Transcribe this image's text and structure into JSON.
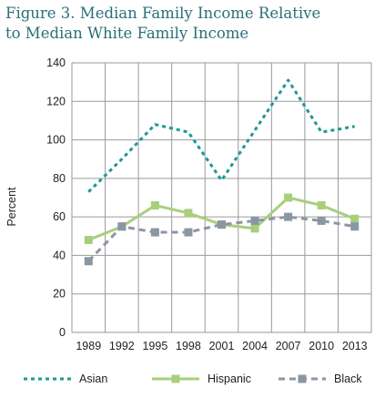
{
  "figure": {
    "title_line1": "Figure 3. Median Family Income Relative",
    "title_line2": "to Median White Family Income"
  },
  "chart_data": {
    "type": "line",
    "title": "Figure 3. Median Family Income Relative to Median White Family Income",
    "xlabel": "",
    "ylabel": "Percent",
    "categories": [
      "1989",
      "1992",
      "1995",
      "1998",
      "2001",
      "2004",
      "2007",
      "2010",
      "2013"
    ],
    "ylim": [
      0,
      140
    ],
    "yticks": [
      0,
      20,
      40,
      60,
      80,
      100,
      120,
      140
    ],
    "grid": true,
    "legend_position": "bottom",
    "series": [
      {
        "name": "Asian",
        "color": "#1a9a94",
        "style": "dotted",
        "marker": "none",
        "values": [
          73,
          90,
          108,
          104,
          79,
          105,
          131,
          104,
          107
        ]
      },
      {
        "name": "Hispanic",
        "color": "#a8cf7c",
        "style": "solid",
        "marker": "square",
        "values": [
          48,
          55,
          66,
          62,
          56,
          54,
          70,
          66,
          59
        ]
      },
      {
        "name": "Black",
        "color": "#8c96a3",
        "style": "dashed",
        "marker": "square",
        "values": [
          37,
          55,
          52,
          52,
          56,
          58,
          60,
          58,
          55
        ]
      }
    ]
  }
}
